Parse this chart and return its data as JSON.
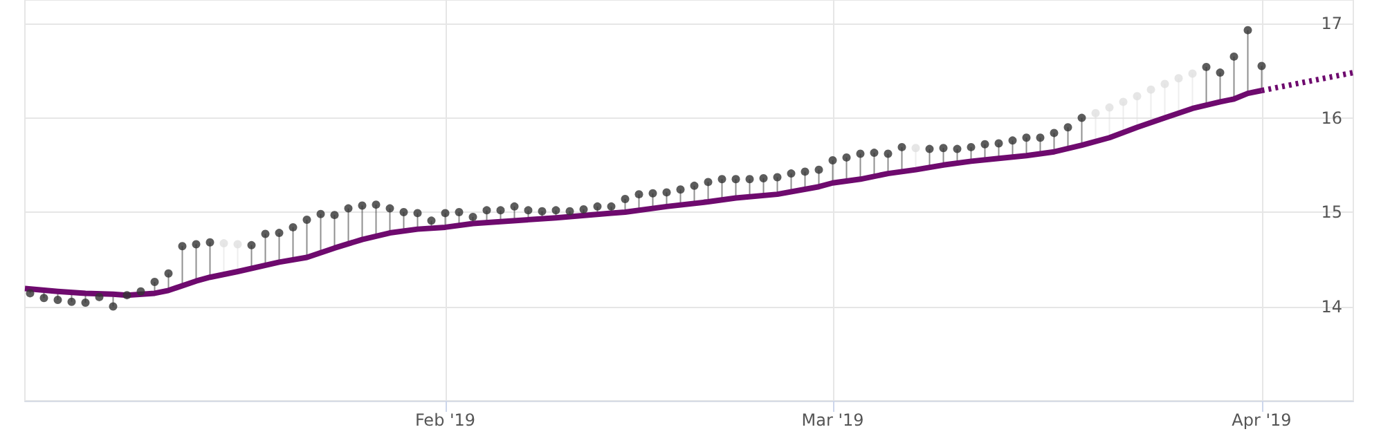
{
  "chart_data": {
    "type": "scatter",
    "x": [
      "2019-01-02",
      "2019-01-03",
      "2019-01-04",
      "2019-01-05",
      "2019-01-06",
      "2019-01-07",
      "2019-01-08",
      "2019-01-09",
      "2019-01-10",
      "2019-01-11",
      "2019-01-12",
      "2019-01-13",
      "2019-01-14",
      "2019-01-15",
      "2019-01-16",
      "2019-01-17",
      "2019-01-18",
      "2019-01-19",
      "2019-01-20",
      "2019-01-21",
      "2019-01-22",
      "2019-01-23",
      "2019-01-24",
      "2019-01-25",
      "2019-01-26",
      "2019-01-27",
      "2019-01-28",
      "2019-01-29",
      "2019-01-30",
      "2019-01-31",
      "2019-02-01",
      "2019-02-02",
      "2019-02-03",
      "2019-02-04",
      "2019-02-05",
      "2019-02-06",
      "2019-02-07",
      "2019-02-08",
      "2019-02-09",
      "2019-02-10",
      "2019-02-11",
      "2019-02-12",
      "2019-02-13",
      "2019-02-14",
      "2019-02-15",
      "2019-02-16",
      "2019-02-17",
      "2019-02-18",
      "2019-02-19",
      "2019-02-20",
      "2019-02-21",
      "2019-02-22",
      "2019-02-23",
      "2019-02-24",
      "2019-02-25",
      "2019-02-26",
      "2019-02-27",
      "2019-02-28",
      "2019-03-01",
      "2019-03-02",
      "2019-03-03",
      "2019-03-04",
      "2019-03-05",
      "2019-03-06",
      "2019-03-07",
      "2019-03-08",
      "2019-03-09",
      "2019-03-10",
      "2019-03-11",
      "2019-03-12",
      "2019-03-13",
      "2019-03-14",
      "2019-03-15",
      "2019-03-16",
      "2019-03-17",
      "2019-03-18",
      "2019-03-19",
      "2019-03-20",
      "2019-03-21",
      "2019-03-22",
      "2019-03-23",
      "2019-03-24",
      "2019-03-25",
      "2019-03-26",
      "2019-03-27",
      "2019-03-28",
      "2019-03-29",
      "2019-03-30",
      "2019-03-31",
      "2019-04-01"
    ],
    "series": [
      {
        "color": "#333333",
        "values": [
          14.14,
          14.09,
          14.07,
          14.05,
          14.04,
          14.1,
          14.0,
          14.12,
          14.16,
          14.26,
          14.35,
          14.64,
          14.66,
          14.68,
          null,
          null,
          14.65,
          14.77,
          14.78,
          14.84,
          14.92,
          14.98,
          14.97,
          15.04,
          15.07,
          15.08,
          15.04,
          15.0,
          14.99,
          14.91,
          14.99,
          15.0,
          14.95,
          15.02,
          15.02,
          15.06,
          15.02,
          15.01,
          15.02,
          15.01,
          15.03,
          15.06,
          15.06,
          15.14,
          15.19,
          15.2,
          15.21,
          15.24,
          15.28,
          15.32,
          15.35,
          15.35,
          15.35,
          15.36,
          15.37,
          15.41,
          15.43,
          15.45,
          15.55,
          15.58,
          15.62,
          15.63,
          15.62,
          15.69,
          null,
          15.67,
          15.68,
          15.67,
          15.69,
          15.72,
          15.73,
          15.76,
          15.79,
          15.79,
          15.84,
          15.9,
          16.0,
          null,
          null,
          null,
          null,
          null,
          null,
          null,
          null,
          16.54,
          16.48,
          16.65,
          16.93,
          16.55
        ],
        "errors": [
          [
            14.14,
            14.18
          ],
          [
            14.09,
            14.17
          ],
          [
            14.07,
            14.16
          ],
          [
            14.05,
            14.15
          ],
          [
            14.04,
            14.14
          ],
          [
            14.1,
            14.13
          ],
          [
            14.0,
            14.13
          ],
          null,
          [
            14.13,
            14.16
          ],
          [
            14.14,
            14.26
          ],
          [
            14.17,
            14.35
          ],
          [
            14.22,
            14.64
          ],
          [
            14.27,
            14.66
          ],
          [
            14.31,
            14.68
          ],
          null,
          null,
          [
            14.4,
            14.65
          ],
          [
            14.44,
            14.77
          ],
          [
            14.47,
            14.78
          ],
          [
            14.5,
            14.84
          ],
          [
            14.52,
            14.92
          ],
          [
            14.57,
            14.98
          ],
          [
            14.62,
            14.97
          ],
          [
            14.67,
            15.04
          ],
          [
            14.71,
            15.07
          ],
          [
            14.75,
            15.08
          ],
          [
            14.78,
            15.04
          ],
          [
            14.8,
            15.0
          ],
          [
            14.82,
            14.99
          ],
          [
            14.83,
            14.91
          ],
          [
            14.84,
            14.99
          ],
          [
            14.86,
            15.0
          ],
          [
            14.88,
            14.95
          ],
          [
            14.89,
            15.02
          ],
          [
            14.9,
            15.02
          ],
          [
            14.91,
            15.06
          ],
          [
            14.92,
            15.02
          ],
          [
            14.93,
            15.01
          ],
          [
            14.94,
            15.02
          ],
          [
            14.95,
            15.01
          ],
          [
            14.96,
            15.03
          ],
          [
            14.98,
            15.06
          ],
          [
            14.99,
            15.06
          ],
          [
            15.0,
            15.14
          ],
          [
            15.02,
            15.19
          ],
          [
            15.04,
            15.2
          ],
          [
            15.06,
            15.21
          ],
          [
            15.08,
            15.24
          ],
          [
            15.09,
            15.28
          ],
          [
            15.11,
            15.32
          ],
          [
            15.13,
            15.35
          ],
          [
            15.15,
            15.35
          ],
          [
            15.16,
            15.35
          ],
          [
            15.18,
            15.36
          ],
          [
            15.19,
            15.37
          ],
          [
            15.22,
            15.41
          ],
          [
            15.24,
            15.43
          ],
          [
            15.27,
            15.45
          ],
          [
            15.31,
            15.55
          ],
          [
            15.33,
            15.58
          ],
          [
            15.35,
            15.62
          ],
          [
            15.38,
            15.63
          ],
          [
            15.41,
            15.62
          ],
          [
            15.43,
            15.69
          ],
          null,
          [
            15.48,
            15.67
          ],
          [
            15.5,
            15.68
          ],
          [
            15.52,
            15.67
          ],
          [
            15.54,
            15.69
          ],
          [
            15.56,
            15.72
          ],
          [
            15.57,
            15.73
          ],
          [
            15.59,
            15.76
          ],
          [
            15.6,
            15.79
          ],
          [
            15.62,
            15.79
          ],
          [
            15.64,
            15.84
          ],
          [
            15.68,
            15.9
          ],
          [
            15.71,
            16.0
          ],
          null,
          null,
          null,
          null,
          null,
          null,
          null,
          null,
          [
            16.14,
            16.54
          ],
          [
            16.17,
            16.48
          ],
          [
            16.2,
            16.65
          ],
          [
            16.26,
            16.93
          ],
          [
            16.29,
            16.55
          ]
        ]
      },
      {
        "color": "#e0e0e0",
        "values": [
          null,
          null,
          null,
          null,
          null,
          null,
          null,
          null,
          null,
          null,
          null,
          null,
          null,
          null,
          14.67,
          14.66,
          null,
          null,
          null,
          null,
          null,
          null,
          null,
          null,
          null,
          null,
          null,
          null,
          null,
          null,
          null,
          null,
          null,
          null,
          null,
          null,
          null,
          null,
          null,
          null,
          null,
          null,
          null,
          null,
          null,
          null,
          null,
          null,
          null,
          null,
          null,
          null,
          null,
          null,
          null,
          null,
          null,
          null,
          null,
          null,
          null,
          null,
          null,
          null,
          15.68,
          null,
          null,
          null,
          null,
          null,
          null,
          null,
          null,
          null,
          null,
          null,
          null,
          16.05,
          16.11,
          16.17,
          16.23,
          16.3,
          16.36,
          16.42,
          16.47,
          null,
          null,
          null,
          null,
          null
        ],
        "errors": [
          null,
          null,
          null,
          null,
          null,
          null,
          null,
          null,
          null,
          null,
          null,
          null,
          null,
          null,
          [
            14.34,
            14.67
          ],
          [
            14.37,
            14.66
          ],
          null,
          null,
          null,
          null,
          null,
          null,
          null,
          null,
          null,
          null,
          null,
          null,
          null,
          null,
          null,
          null,
          null,
          null,
          null,
          null,
          null,
          null,
          null,
          null,
          null,
          null,
          null,
          null,
          null,
          null,
          null,
          null,
          null,
          null,
          null,
          null,
          null,
          null,
          null,
          null,
          null,
          null,
          null,
          null,
          null,
          null,
          null,
          null,
          [
            15.45,
            15.68
          ],
          null,
          null,
          null,
          null,
          null,
          null,
          null,
          null,
          null,
          null,
          null,
          null,
          [
            15.75,
            16.05
          ],
          [
            15.79,
            16.11
          ],
          [
            15.85,
            16.17
          ],
          [
            15.9,
            16.23
          ],
          [
            15.95,
            16.3
          ],
          [
            16.0,
            16.36
          ],
          [
            16.05,
            16.42
          ],
          [
            16.1,
            16.47
          ],
          null,
          null,
          null,
          null,
          null
        ]
      },
      {
        "type": "line",
        "color": "#6e0a6e",
        "marker": "none",
        "line_style": "solid",
        "x": [
          "2019-01-01T15:00",
          "2019-01-04",
          "2019-01-06",
          "2019-01-08",
          "2019-01-09",
          "2019-01-11",
          "2019-01-12",
          "2019-01-14",
          "2019-01-15",
          "2019-01-17",
          "2019-01-20",
          "2019-01-22",
          "2019-01-24",
          "2019-01-26",
          "2019-01-28",
          "2019-01-30",
          "2019-02-01",
          "2019-02-03",
          "2019-02-05",
          "2019-02-09",
          "2019-02-13",
          "2019-02-14",
          "2019-02-17",
          "2019-02-20",
          "2019-02-22",
          "2019-02-25",
          "2019-02-28",
          "2019-03-01",
          "2019-03-03",
          "2019-03-05",
          "2019-03-07",
          "2019-03-09",
          "2019-03-11",
          "2019-03-13",
          "2019-03-15",
          "2019-03-17",
          "2019-03-19",
          "2019-03-21",
          "2019-03-23",
          "2019-03-25",
          "2019-03-27",
          "2019-03-29",
          "2019-03-30",
          "2019-03-31",
          "2019-04-01"
        ],
        "values": [
          14.19,
          14.16,
          14.14,
          14.13,
          14.12,
          14.14,
          14.17,
          14.27,
          14.31,
          14.37,
          14.47,
          14.52,
          14.62,
          14.71,
          14.78,
          14.82,
          14.84,
          14.88,
          14.9,
          14.94,
          14.99,
          15.0,
          15.06,
          15.11,
          15.15,
          15.19,
          15.27,
          15.31,
          15.35,
          15.41,
          15.45,
          15.5,
          15.54,
          15.57,
          15.6,
          15.64,
          15.71,
          15.79,
          15.9,
          16.0,
          16.1,
          16.17,
          16.2,
          16.26,
          16.29
        ]
      },
      {
        "type": "line",
        "color": "#6e0a6e",
        "marker": "none",
        "line_style": "dotted",
        "x": [
          "2019-04-01",
          "2019-04-07T15:00"
        ],
        "values": [
          16.29,
          16.48
        ]
      }
    ],
    "marker": "circle",
    "xlim": [
      "2019-01-01T15:00",
      "2019-04-07T15:00"
    ],
    "xticks": [
      {
        "value": "2019-02-01",
        "label": "Feb '19"
      },
      {
        "value": "2019-03-01",
        "label": "Mar '19"
      },
      {
        "value": "2019-04-01",
        "label": "Apr '19"
      }
    ],
    "ylim": [
      13,
      17.25
    ],
    "yticks": [
      14,
      15,
      16,
      17
    ],
    "grid": true
  }
}
